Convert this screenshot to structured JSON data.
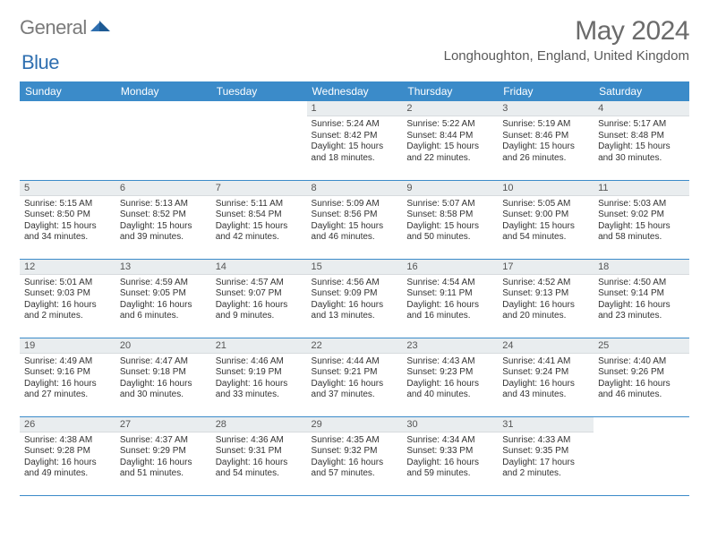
{
  "brand": {
    "part1": "General",
    "part2": "Blue"
  },
  "header": {
    "title": "May 2024",
    "location": "Longhoughton, England, United Kingdom"
  },
  "colors": {
    "header_bg": "#3b8bc9",
    "header_text": "#ffffff",
    "daynum_bg": "#e9edef",
    "row_border": "#3b8bc9",
    "body_text": "#333333",
    "title_text": "#6b6b6b"
  },
  "weekdays": [
    "Sunday",
    "Monday",
    "Tuesday",
    "Wednesday",
    "Thursday",
    "Friday",
    "Saturday"
  ],
  "weeks": [
    [
      null,
      null,
      null,
      {
        "n": "1",
        "sr": "5:24 AM",
        "ss": "8:42 PM",
        "dl": "15 hours and 18 minutes."
      },
      {
        "n": "2",
        "sr": "5:22 AM",
        "ss": "8:44 PM",
        "dl": "15 hours and 22 minutes."
      },
      {
        "n": "3",
        "sr": "5:19 AM",
        "ss": "8:46 PM",
        "dl": "15 hours and 26 minutes."
      },
      {
        "n": "4",
        "sr": "5:17 AM",
        "ss": "8:48 PM",
        "dl": "15 hours and 30 minutes."
      }
    ],
    [
      {
        "n": "5",
        "sr": "5:15 AM",
        "ss": "8:50 PM",
        "dl": "15 hours and 34 minutes."
      },
      {
        "n": "6",
        "sr": "5:13 AM",
        "ss": "8:52 PM",
        "dl": "15 hours and 39 minutes."
      },
      {
        "n": "7",
        "sr": "5:11 AM",
        "ss": "8:54 PM",
        "dl": "15 hours and 42 minutes."
      },
      {
        "n": "8",
        "sr": "5:09 AM",
        "ss": "8:56 PM",
        "dl": "15 hours and 46 minutes."
      },
      {
        "n": "9",
        "sr": "5:07 AM",
        "ss": "8:58 PM",
        "dl": "15 hours and 50 minutes."
      },
      {
        "n": "10",
        "sr": "5:05 AM",
        "ss": "9:00 PM",
        "dl": "15 hours and 54 minutes."
      },
      {
        "n": "11",
        "sr": "5:03 AM",
        "ss": "9:02 PM",
        "dl": "15 hours and 58 minutes."
      }
    ],
    [
      {
        "n": "12",
        "sr": "5:01 AM",
        "ss": "9:03 PM",
        "dl": "16 hours and 2 minutes."
      },
      {
        "n": "13",
        "sr": "4:59 AM",
        "ss": "9:05 PM",
        "dl": "16 hours and 6 minutes."
      },
      {
        "n": "14",
        "sr": "4:57 AM",
        "ss": "9:07 PM",
        "dl": "16 hours and 9 minutes."
      },
      {
        "n": "15",
        "sr": "4:56 AM",
        "ss": "9:09 PM",
        "dl": "16 hours and 13 minutes."
      },
      {
        "n": "16",
        "sr": "4:54 AM",
        "ss": "9:11 PM",
        "dl": "16 hours and 16 minutes."
      },
      {
        "n": "17",
        "sr": "4:52 AM",
        "ss": "9:13 PM",
        "dl": "16 hours and 20 minutes."
      },
      {
        "n": "18",
        "sr": "4:50 AM",
        "ss": "9:14 PM",
        "dl": "16 hours and 23 minutes."
      }
    ],
    [
      {
        "n": "19",
        "sr": "4:49 AM",
        "ss": "9:16 PM",
        "dl": "16 hours and 27 minutes."
      },
      {
        "n": "20",
        "sr": "4:47 AM",
        "ss": "9:18 PM",
        "dl": "16 hours and 30 minutes."
      },
      {
        "n": "21",
        "sr": "4:46 AM",
        "ss": "9:19 PM",
        "dl": "16 hours and 33 minutes."
      },
      {
        "n": "22",
        "sr": "4:44 AM",
        "ss": "9:21 PM",
        "dl": "16 hours and 37 minutes."
      },
      {
        "n": "23",
        "sr": "4:43 AM",
        "ss": "9:23 PM",
        "dl": "16 hours and 40 minutes."
      },
      {
        "n": "24",
        "sr": "4:41 AM",
        "ss": "9:24 PM",
        "dl": "16 hours and 43 minutes."
      },
      {
        "n": "25",
        "sr": "4:40 AM",
        "ss": "9:26 PM",
        "dl": "16 hours and 46 minutes."
      }
    ],
    [
      {
        "n": "26",
        "sr": "4:38 AM",
        "ss": "9:28 PM",
        "dl": "16 hours and 49 minutes."
      },
      {
        "n": "27",
        "sr": "4:37 AM",
        "ss": "9:29 PM",
        "dl": "16 hours and 51 minutes."
      },
      {
        "n": "28",
        "sr": "4:36 AM",
        "ss": "9:31 PM",
        "dl": "16 hours and 54 minutes."
      },
      {
        "n": "29",
        "sr": "4:35 AM",
        "ss": "9:32 PM",
        "dl": "16 hours and 57 minutes."
      },
      {
        "n": "30",
        "sr": "4:34 AM",
        "ss": "9:33 PM",
        "dl": "16 hours and 59 minutes."
      },
      {
        "n": "31",
        "sr": "4:33 AM",
        "ss": "9:35 PM",
        "dl": "17 hours and 2 minutes."
      },
      null
    ]
  ],
  "labels": {
    "sunrise": "Sunrise:",
    "sunset": "Sunset:",
    "daylight": "Daylight:"
  }
}
